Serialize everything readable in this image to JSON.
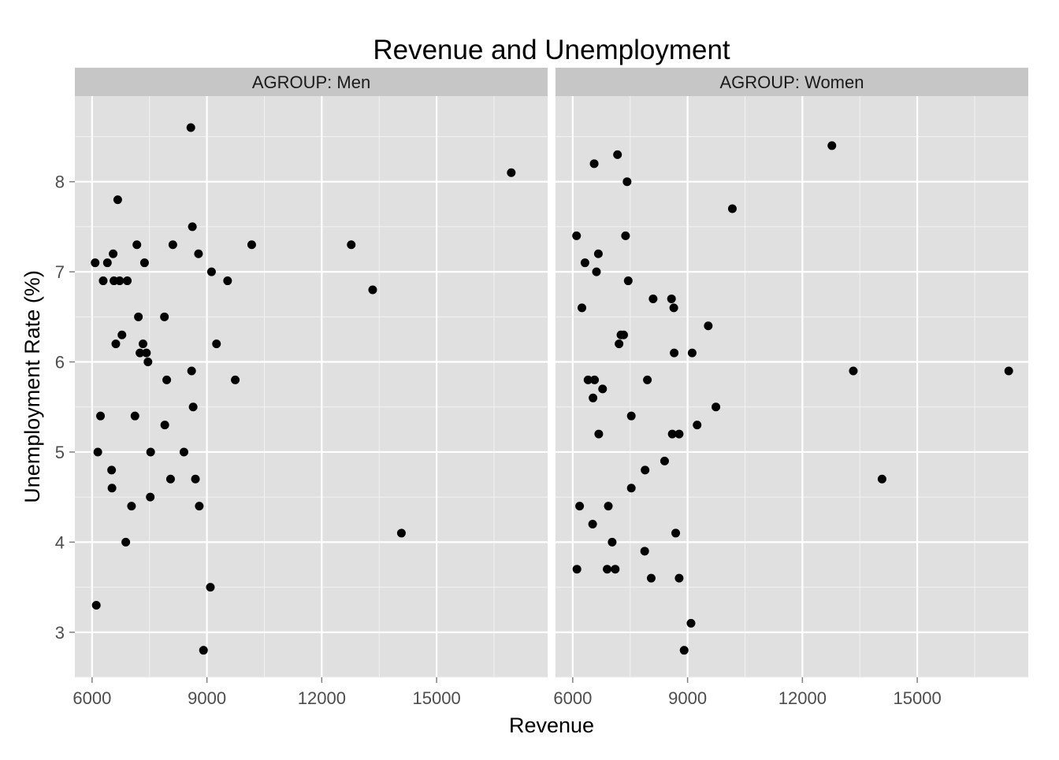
{
  "chart_data": {
    "type": "scatter",
    "title": "Revenue and Unemployment",
    "xlabel": "Revenue",
    "ylabel": "Unemployment Rate (%)",
    "xlim": [
      5550,
      17900
    ],
    "ylim": [
      2.5,
      8.95
    ],
    "x_ticks": [
      6000,
      9000,
      12000,
      15000
    ],
    "x_tick_labels": [
      "6000",
      "9000",
      "12000",
      "15000"
    ],
    "y_ticks": [
      3,
      4,
      5,
      6,
      7,
      8
    ],
    "y_tick_labels": [
      "3",
      "4",
      "5",
      "6",
      "7",
      "8"
    ],
    "grid": true,
    "panel_background": "#e0e0e0",
    "strip_background": "#c6c6c6",
    "point_color": "#000000",
    "panels": [
      {
        "strip_label": "AGROUP: Men",
        "points": [
          [
            8580,
            8.6
          ],
          [
            16950,
            8.1
          ],
          [
            6670,
            7.8
          ],
          [
            8620,
            7.5
          ],
          [
            6080,
            7.1
          ],
          [
            6400,
            7.1
          ],
          [
            6550,
            7.2
          ],
          [
            7170,
            7.3
          ],
          [
            7370,
            7.1
          ],
          [
            8110,
            7.3
          ],
          [
            8780,
            7.2
          ],
          [
            10170,
            7.3
          ],
          [
            12770,
            7.3
          ],
          [
            6290,
            6.9
          ],
          [
            6570,
            6.9
          ],
          [
            6720,
            6.9
          ],
          [
            6920,
            6.9
          ],
          [
            9120,
            7.0
          ],
          [
            9540,
            6.9
          ],
          [
            13330,
            6.8
          ],
          [
            7210,
            6.5
          ],
          [
            7890,
            6.5
          ],
          [
            6780,
            6.3
          ],
          [
            6620,
            6.2
          ],
          [
            7250,
            6.1
          ],
          [
            7330,
            6.2
          ],
          [
            7420,
            6.1
          ],
          [
            7460,
            6.0
          ],
          [
            9250,
            6.2
          ],
          [
            8600,
            5.9
          ],
          [
            7950,
            5.8
          ],
          [
            9740,
            5.8
          ],
          [
            6220,
            5.4
          ],
          [
            7120,
            5.4
          ],
          [
            8640,
            5.5
          ],
          [
            7900,
            5.3
          ],
          [
            6150,
            5.0
          ],
          [
            7530,
            5.0
          ],
          [
            8400,
            5.0
          ],
          [
            6510,
            4.8
          ],
          [
            6520,
            4.6
          ],
          [
            8050,
            4.7
          ],
          [
            8700,
            4.7
          ],
          [
            7030,
            4.4
          ],
          [
            7520,
            4.5
          ],
          [
            8800,
            4.4
          ],
          [
            6880,
            4.0
          ],
          [
            14080,
            4.1
          ],
          [
            6110,
            3.3
          ],
          [
            9090,
            3.5
          ],
          [
            8910,
            2.8
          ]
        ]
      },
      {
        "strip_label": "AGROUP: Women",
        "points": [
          [
            12770,
            8.4
          ],
          [
            7170,
            8.3
          ],
          [
            6560,
            8.2
          ],
          [
            7420,
            8.0
          ],
          [
            10170,
            7.7
          ],
          [
            6100,
            7.4
          ],
          [
            7380,
            7.4
          ],
          [
            6320,
            7.1
          ],
          [
            6670,
            7.2
          ],
          [
            6620,
            7.0
          ],
          [
            7450,
            6.9
          ],
          [
            8100,
            6.7
          ],
          [
            8580,
            6.7
          ],
          [
            6240,
            6.6
          ],
          [
            8640,
            6.6
          ],
          [
            9540,
            6.4
          ],
          [
            7260,
            6.3
          ],
          [
            7330,
            6.3
          ],
          [
            7210,
            6.2
          ],
          [
            8650,
            6.1
          ],
          [
            9120,
            6.1
          ],
          [
            13330,
            5.9
          ],
          [
            17390,
            5.9
          ],
          [
            6400,
            5.8
          ],
          [
            6570,
            5.8
          ],
          [
            7950,
            5.8
          ],
          [
            6780,
            5.7
          ],
          [
            6530,
            5.6
          ],
          [
            9740,
            5.5
          ],
          [
            7530,
            5.4
          ],
          [
            9250,
            5.3
          ],
          [
            6680,
            5.2
          ],
          [
            8600,
            5.2
          ],
          [
            8780,
            5.2
          ],
          [
            8400,
            4.9
          ],
          [
            7890,
            4.8
          ],
          [
            14080,
            4.7
          ],
          [
            7530,
            4.6
          ],
          [
            6180,
            4.4
          ],
          [
            6930,
            4.4
          ],
          [
            6520,
            4.2
          ],
          [
            8690,
            4.1
          ],
          [
            7030,
            4.0
          ],
          [
            7880,
            3.9
          ],
          [
            6110,
            3.7
          ],
          [
            6900,
            3.7
          ],
          [
            7110,
            3.7
          ],
          [
            8050,
            3.6
          ],
          [
            8780,
            3.6
          ],
          [
            9090,
            3.1
          ],
          [
            8910,
            2.8
          ]
        ]
      }
    ]
  }
}
